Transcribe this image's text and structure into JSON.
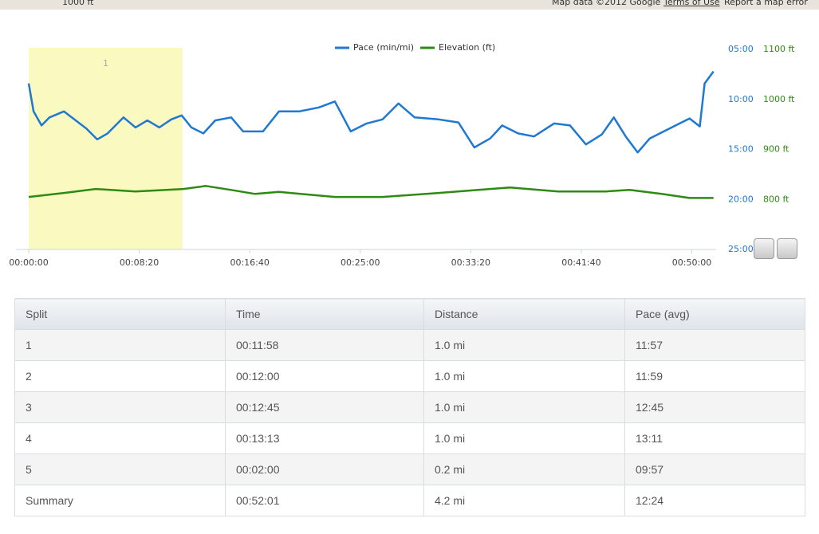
{
  "map_strip": {
    "scale": "1000 ft",
    "attribution": "Map data ©2012 Google",
    "terms": "Terms of Use",
    "report": "Report a map error"
  },
  "chart_data": {
    "type": "line",
    "highlight_label": "1",
    "highlight_range": [
      0,
      696
    ],
    "xlim": [
      0,
      3110
    ],
    "xticks": [
      {
        "value": 0,
        "label": "00:00:00"
      },
      {
        "value": 500,
        "label": "00:08:20"
      },
      {
        "value": 1000,
        "label": "00:16:40"
      },
      {
        "value": 1500,
        "label": "00:25:00"
      },
      {
        "value": 2000,
        "label": "00:33:20"
      },
      {
        "value": 2500,
        "label": "00:41:40"
      },
      {
        "value": 3000,
        "label": "00:50:00"
      }
    ],
    "ylim": [
      25,
      5
    ],
    "yticks": [
      {
        "value": 5,
        "label": "05:00"
      },
      {
        "value": 10,
        "label": "10:00"
      },
      {
        "value": 15,
        "label": "15:00"
      },
      {
        "value": 20,
        "label": "20:00"
      },
      {
        "value": 25,
        "label": "25:00"
      }
    ],
    "y2lim": [
      700,
      1100
    ],
    "y2ticks": [
      {
        "value": 1100,
        "label": "1100 ft"
      },
      {
        "value": 1000,
        "label": "1000 ft"
      },
      {
        "value": 900,
        "label": "900 ft"
      },
      {
        "value": 800,
        "label": "800 ft"
      }
    ],
    "series": [
      {
        "name": "Pace (min/mi)",
        "color": "#1f78d1",
        "x": [
          0,
          22,
          58,
          94,
          159,
          213,
          260,
          310,
          357,
          429,
          483,
          537,
          591,
          645,
          692,
          736,
          790,
          844,
          916,
          970,
          1060,
          1132,
          1223,
          1313,
          1385,
          1457,
          1529,
          1601,
          1673,
          1746,
          1854,
          1944,
          2016,
          2088,
          2142,
          2214,
          2286,
          2377,
          2449,
          2521,
          2593,
          2647,
          2701,
          2755,
          2810,
          2900,
          2990,
          3036,
          3058,
          3098
        ],
        "values": [
          8.4,
          11.2,
          12.6,
          11.8,
          11.2,
          12.1,
          12.9,
          14.0,
          13.4,
          11.8,
          12.8,
          12.1,
          12.8,
          12.0,
          11.6,
          12.8,
          13.4,
          12.1,
          11.8,
          13.2,
          13.2,
          11.2,
          11.2,
          10.8,
          10.2,
          13.2,
          12.4,
          12.0,
          10.4,
          11.8,
          12.0,
          12.3,
          14.8,
          13.9,
          12.6,
          13.4,
          13.7,
          12.4,
          12.6,
          14.5,
          13.5,
          11.8,
          13.7,
          15.3,
          13.9,
          12.9,
          11.9,
          12.7,
          8.4,
          7.2
        ]
      },
      {
        "name": "Elevation (ft)",
        "color": "#2d8a12",
        "axis": "y2",
        "x": [
          0,
          159,
          303,
          483,
          700,
          801,
          916,
          1024,
          1132,
          1385,
          1601,
          1854,
          2034,
          2178,
          2395,
          2611,
          2719,
          2863,
          2990,
          3098
        ],
        "values": [
          805,
          813,
          821,
          816,
          821,
          827,
          819,
          811,
          815,
          805,
          805,
          813,
          819,
          824,
          816,
          816,
          819,
          811,
          803,
          803
        ]
      }
    ]
  },
  "table": {
    "header": [
      "Split",
      "Time",
      "Distance",
      "Pace (avg)"
    ],
    "rows": [
      [
        "1",
        "00:11:58",
        "1.0 mi",
        "11:57"
      ],
      [
        "2",
        "00:12:00",
        "1.0 mi",
        "11:59"
      ],
      [
        "3",
        "00:12:45",
        "1.0 mi",
        "12:45"
      ],
      [
        "4",
        "00:13:13",
        "1.0 mi",
        "13:11"
      ],
      [
        "5",
        "00:02:00",
        "0.2 mi",
        "09:57"
      ],
      [
        "Summary",
        "00:52:01",
        "4.2 mi",
        "12:24"
      ]
    ]
  }
}
